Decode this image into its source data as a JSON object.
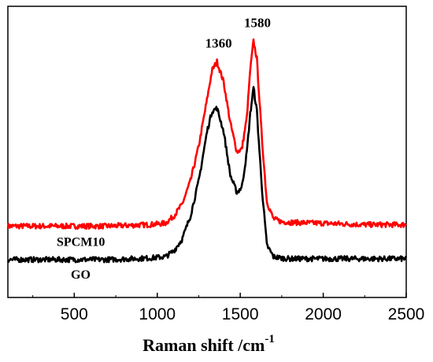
{
  "chart_data": {
    "type": "line",
    "xlabel": "Raman shift /cm",
    "xlabel_superscript": "-1",
    "ylabel": "",
    "xlim": [
      100,
      2500
    ],
    "ylim": [
      0,
      1
    ],
    "x_ticks": [
      500,
      1000,
      1500,
      2000,
      2500
    ],
    "x_tick_labels": [
      "500",
      "1000",
      "1500",
      "2000",
      "2500"
    ],
    "y_ticks_shown": false,
    "grid": false,
    "annotations": [
      {
        "text": "1360",
        "x": 1360
      },
      {
        "text": "1580",
        "x": 1580
      }
    ],
    "series": [
      {
        "name": "SPCM10",
        "color": "#ff0000",
        "x": [
          100,
          400,
          700,
          950,
          1050,
          1100,
          1150,
          1200,
          1250,
          1300,
          1330,
          1360,
          1400,
          1440,
          1480,
          1510,
          1540,
          1560,
          1580,
          1600,
          1630,
          1660,
          1700,
          1750,
          1800,
          2000,
          2250,
          2500
        ],
        "y": [
          0.245,
          0.245,
          0.245,
          0.25,
          0.255,
          0.28,
          0.32,
          0.4,
          0.52,
          0.68,
          0.78,
          0.81,
          0.74,
          0.6,
          0.5,
          0.51,
          0.62,
          0.78,
          0.88,
          0.82,
          0.55,
          0.33,
          0.27,
          0.26,
          0.258,
          0.255,
          0.25,
          0.25
        ]
      },
      {
        "name": "GO",
        "color": "#000000",
        "x": [
          100,
          400,
          700,
          950,
          1050,
          1100,
          1150,
          1200,
          1250,
          1300,
          1330,
          1360,
          1400,
          1440,
          1480,
          1510,
          1540,
          1560,
          1580,
          1600,
          1630,
          1660,
          1700,
          1750,
          1800,
          2000,
          2250,
          2500
        ],
        "y": [
          0.13,
          0.13,
          0.13,
          0.135,
          0.14,
          0.16,
          0.2,
          0.28,
          0.4,
          0.57,
          0.64,
          0.65,
          0.57,
          0.42,
          0.36,
          0.38,
          0.5,
          0.63,
          0.72,
          0.64,
          0.38,
          0.18,
          0.14,
          0.135,
          0.133,
          0.133,
          0.133,
          0.133
        ]
      }
    ]
  }
}
